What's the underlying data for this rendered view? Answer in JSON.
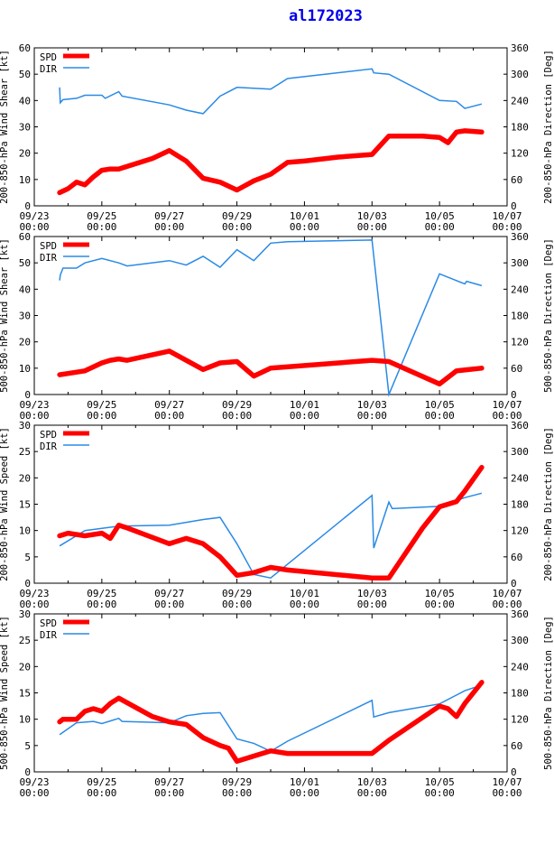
{
  "title": "al172023",
  "colors": {
    "spd": "#ff0000",
    "dir": "#2a8ae6",
    "title": "#0000ee",
    "axis": "#000000"
  },
  "chart_data": [
    {
      "type": "line",
      "ylabel_left": "200-850-hPa Wind Shear [kt]",
      "ylabel_right": "200-850-hPa Direction [Deg]",
      "ylim_left": [
        0,
        60
      ],
      "ylim_right": [
        0,
        360
      ],
      "yticks_left": [
        "0",
        "10",
        "20",
        "30",
        "40",
        "50",
        "60"
      ],
      "yticks_right": [
        "0",
        "60",
        "120",
        "180",
        "240",
        "300",
        "360"
      ],
      "xticks": [
        [
          "09/23",
          "00:00"
        ],
        [
          "09/25",
          "00:00"
        ],
        [
          "09/27",
          "00:00"
        ],
        [
          "09/29",
          "00:00"
        ],
        [
          "10/01",
          "00:00"
        ],
        [
          "10/03",
          "00:00"
        ],
        [
          "10/05",
          "00:00"
        ],
        [
          "10/07",
          "00:00"
        ]
      ],
      "legend": [
        "SPD",
        "DIR"
      ],
      "series": [
        {
          "name": "SPD",
          "x": [
            0.75,
            1.0,
            1.25,
            1.5,
            1.75,
            2.0,
            2.25,
            2.5,
            3.5,
            4.0,
            4.5,
            5.0,
            5.5,
            6.0,
            6.5,
            7.0,
            7.5,
            8.0,
            9.0,
            10.0,
            10.5,
            11.5,
            12.0,
            12.25,
            12.5,
            12.75,
            13.25
          ],
          "values": [
            5.0,
            6.5,
            9.0,
            8.0,
            11.0,
            13.5,
            14.0,
            14.0,
            18.0,
            21.0,
            17.0,
            10.5,
            9.0,
            6.0,
            9.5,
            12.0,
            16.5,
            17.0,
            18.5,
            19.5,
            26.5,
            26.5,
            26.0,
            24.0,
            28.0,
            28.5,
            28.0
          ]
        },
        {
          "name": "DIR",
          "x": [
            0.75,
            0.77,
            0.85,
            1.25,
            1.5,
            2.0,
            2.1,
            2.5,
            2.6,
            4.0,
            4.5,
            5.0,
            5.5,
            6.0,
            7.0,
            7.5,
            10.0,
            10.05,
            10.5,
            12.0,
            12.5,
            12.75,
            13.25
          ],
          "values": [
            270,
            235,
            242,
            245,
            252,
            252,
            245,
            260,
            250,
            230,
            218,
            210,
            250,
            270,
            266,
            290,
            312,
            303,
            300,
            240,
            238,
            222,
            232
          ]
        }
      ]
    },
    {
      "type": "line",
      "ylabel_left": "500-850-hPa Wind Shear [kt]",
      "ylabel_right": "500-850-hPa Direction [Deg]",
      "ylim_left": [
        0,
        60
      ],
      "ylim_right": [
        0,
        360
      ],
      "yticks_left": [
        "0",
        "10",
        "20",
        "30",
        "40",
        "50",
        "60"
      ],
      "yticks_right": [
        "0",
        "60",
        "120",
        "180",
        "240",
        "300",
        "360"
      ],
      "xticks": [
        [
          "09/23",
          "00:00"
        ],
        [
          "09/25",
          "00:00"
        ],
        [
          "09/27",
          "00:00"
        ],
        [
          "09/29",
          "00:00"
        ],
        [
          "10/01",
          "00:00"
        ],
        [
          "10/03",
          "00:00"
        ],
        [
          "10/05",
          "00:00"
        ],
        [
          "10/07",
          "00:00"
        ]
      ],
      "legend": [
        "SPD",
        "DIR"
      ],
      "series": [
        {
          "name": "SPD",
          "x": [
            0.75,
            1.0,
            1.5,
            2.0,
            2.25,
            2.5,
            2.75,
            4.0,
            5.0,
            5.5,
            6.0,
            6.5,
            7.0,
            10.0,
            10.5,
            12.0,
            12.5,
            13.25
          ],
          "values": [
            7.5,
            8.0,
            9.0,
            12.0,
            13.0,
            13.5,
            13.0,
            16.5,
            9.5,
            12.0,
            12.5,
            7.0,
            10.0,
            13.0,
            12.5,
            4.0,
            9.0,
            10.0
          ]
        },
        {
          "name": "DIR",
          "x": [
            0.75,
            0.77,
            0.85,
            1.25,
            1.5,
            2.0,
            2.5,
            2.75,
            4.0,
            4.5,
            5.0,
            5.5,
            6.0,
            6.5,
            7.0,
            7.5,
            10.0,
            10.5,
            12.0,
            12.75,
            12.8,
            13.25
          ],
          "values": [
            260,
            272,
            288,
            288,
            300,
            310,
            300,
            293,
            305,
            295,
            315,
            290,
            330,
            305,
            345,
            348,
            352,
            0,
            275,
            252,
            258,
            248
          ]
        }
      ]
    },
    {
      "type": "line",
      "ylabel_left": "200-850-hPa Wind Speed [kt]",
      "ylabel_right": "200-850-hPa Direction [Deg]",
      "ylim_left": [
        0,
        30
      ],
      "ylim_right": [
        0,
        360
      ],
      "yticks_left": [
        "0",
        "5",
        "10",
        "15",
        "20",
        "25",
        "30"
      ],
      "yticks_right": [
        "0",
        "60",
        "120",
        "180",
        "240",
        "300",
        "360"
      ],
      "xticks": [
        [
          "09/23",
          "00:00"
        ],
        [
          "09/25",
          "00:00"
        ],
        [
          "09/27",
          "00:00"
        ],
        [
          "09/29",
          "00:00"
        ],
        [
          "10/01",
          "00:00"
        ],
        [
          "10/03",
          "00:00"
        ],
        [
          "10/05",
          "00:00"
        ],
        [
          "10/07",
          "00:00"
        ]
      ],
      "legend": [
        "SPD",
        "DIR"
      ],
      "series": [
        {
          "name": "SPD",
          "x": [
            0.75,
            1.0,
            1.5,
            2.0,
            2.25,
            2.5,
            2.75,
            4.0,
            4.5,
            5.0,
            5.5,
            6.0,
            6.5,
            7.0,
            7.5,
            10.0,
            10.5,
            11.5,
            12.0,
            12.5,
            12.75,
            13.25
          ],
          "values": [
            9.0,
            9.5,
            9.0,
            9.5,
            8.5,
            11.0,
            10.5,
            7.5,
            8.5,
            7.5,
            5.0,
            1.5,
            2.0,
            3.0,
            2.5,
            1.0,
            1.0,
            10.5,
            14.5,
            15.5,
            17.5,
            22.0
          ]
        },
        {
          "name": "DIR",
          "x": [
            0.75,
            1.5,
            2.0,
            2.5,
            4.0,
            5.0,
            5.5,
            6.0,
            6.5,
            7.0,
            10.0,
            10.05,
            10.5,
            10.6,
            12.0,
            12.75,
            13.25
          ],
          "values": [
            85,
            120,
            125,
            130,
            132,
            145,
            150,
            90,
            20,
            12,
            200,
            80,
            185,
            170,
            175,
            195,
            205
          ]
        }
      ]
    },
    {
      "type": "line",
      "ylabel_left": "500-850-hPa Wind Speed [kt]",
      "ylabel_right": "500-850-hPa Direction [Deg]",
      "ylim_left": [
        0,
        30
      ],
      "ylim_right": [
        0,
        360
      ],
      "yticks_left": [
        "0",
        "5",
        "10",
        "15",
        "20",
        "25",
        "30"
      ],
      "yticks_right": [
        "0",
        "60",
        "120",
        "180",
        "240",
        "300",
        "360"
      ],
      "xticks": [
        [
          "09/23",
          "00:00"
        ],
        [
          "09/25",
          "00:00"
        ],
        [
          "09/27",
          "00:00"
        ],
        [
          "09/29",
          "00:00"
        ],
        [
          "10/01",
          "00:00"
        ],
        [
          "10/03",
          "00:00"
        ],
        [
          "10/05",
          "00:00"
        ],
        [
          "10/07",
          "00:00"
        ]
      ],
      "legend": [
        "SPD",
        "DIR"
      ],
      "series": [
        {
          "name": "SPD",
          "x": [
            0.75,
            0.85,
            1.25,
            1.5,
            1.75,
            2.0,
            2.25,
            2.5,
            3.5,
            4.0,
            4.5,
            5.0,
            5.5,
            5.75,
            6.0,
            6.5,
            7.0,
            7.5,
            10.0,
            10.5,
            12.0,
            12.25,
            12.5,
            12.75,
            13.25
          ],
          "values": [
            9.5,
            10.0,
            10.0,
            11.5,
            12.0,
            11.5,
            13.0,
            14.0,
            10.5,
            9.5,
            9.0,
            6.5,
            5.0,
            4.5,
            2.0,
            3.0,
            4.0,
            3.5,
            3.5,
            6.0,
            12.5,
            12.0,
            10.5,
            13.0,
            17.0
          ]
        },
        {
          "name": "DIR",
          "x": [
            0.75,
            1.25,
            1.75,
            2.0,
            2.5,
            2.6,
            4.0,
            4.5,
            5.0,
            5.5,
            6.0,
            6.5,
            7.0,
            7.5,
            10.0,
            10.05,
            10.5,
            12.0,
            12.75,
            13.25
          ],
          "values": [
            85,
            112,
            115,
            110,
            122,
            115,
            112,
            128,
            133,
            135,
            75,
            65,
            47,
            70,
            163,
            125,
            135,
            155,
            185,
            198
          ]
        }
      ]
    }
  ]
}
